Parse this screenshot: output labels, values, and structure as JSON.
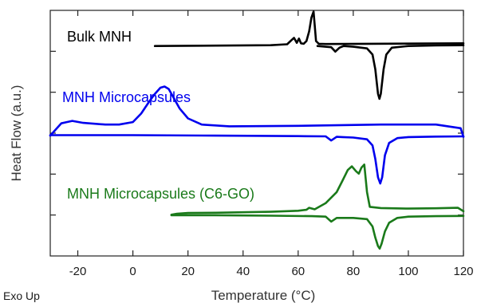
{
  "chart_data": {
    "type": "line",
    "xlabel": "Temperature (°C)",
    "ylabel": "Heat Flow (a.u.)",
    "note": "Exo Up",
    "xlim": [
      -30,
      120
    ],
    "ylim": [
      0,
      10
    ],
    "x_ticks": [
      -20,
      0,
      20,
      40,
      60,
      80,
      100,
      120
    ],
    "y_ticks_count": 5,
    "grid": false,
    "legend": "none",
    "series": [
      {
        "name": "Bulk MNH",
        "color": "#000000",
        "segments": [
          {
            "x": [
              8,
              50,
              56,
              57.5,
              58.5,
              59.5,
              60.3,
              61,
              62,
              63,
              64,
              64.8,
              65.6,
              66.5,
              67.5,
              70,
              85,
              120
            ],
            "y": [
              8.55,
              8.58,
              8.62,
              8.78,
              8.88,
              8.68,
              8.85,
              8.66,
              8.64,
              8.75,
              9.15,
              9.7,
              9.95,
              8.75,
              8.64,
              8.63,
              8.64,
              8.66
            ]
          },
          {
            "x": [
              67,
              72,
              73.5,
              75,
              76.5,
              80,
              85,
              87,
              88,
              89,
              89.5,
              90,
              91,
              92,
              94,
              100,
              110,
              120
            ],
            "y": [
              8.55,
              8.5,
              8.32,
              8.48,
              8.55,
              8.52,
              8.45,
              8.2,
              7.6,
              6.6,
              6.4,
              6.6,
              7.6,
              8.2,
              8.48,
              8.55,
              8.57,
              8.58
            ]
          }
        ]
      },
      {
        "name": "MNH Microcapsules",
        "color": "#0000ee",
        "segments": [
          {
            "x": [
              -30,
              -28,
              -26,
              -24,
              -22,
              -18,
              -10,
              -5,
              0,
              3,
              6,
              8,
              10,
              11.5,
              13,
              15,
              17,
              20,
              25,
              35,
              60,
              90,
              110,
              119,
              120
            ],
            "y": [
              4.9,
              5.15,
              5.4,
              5.45,
              5.5,
              5.42,
              5.35,
              5.35,
              5.45,
              5.8,
              6.3,
              6.6,
              6.85,
              6.9,
              6.8,
              6.4,
              6.0,
              5.6,
              5.35,
              5.28,
              5.3,
              5.35,
              5.35,
              5.2,
              4.85
            ]
          },
          {
            "x": [
              -30,
              0,
              30,
              60,
              70,
              72,
              74,
              76,
              80,
              85,
              87,
              88,
              89,
              89.8,
              90.5,
              91.5,
              93,
              96,
              100,
              110,
              120
            ],
            "y": [
              4.92,
              4.92,
              4.9,
              4.88,
              4.87,
              4.7,
              4.85,
              4.84,
              4.82,
              4.75,
              4.5,
              3.95,
              3.2,
              2.95,
              3.2,
              4.1,
              4.6,
              4.8,
              4.84,
              4.86,
              4.87
            ]
          }
        ]
      },
      {
        "name": "MNH Microcapsules (C6-GO)",
        "color": "#1a7a1a",
        "segments": [
          {
            "x": [
              14,
              16,
              20,
              30,
              50,
              60,
              63,
              64,
              66,
              70,
              74,
              76,
              78,
              79.5,
              81,
              82,
              83,
              84,
              85,
              86,
              90,
              100,
              110,
              118,
              120
            ],
            "y": [
              1.68,
              1.72,
              1.75,
              1.76,
              1.8,
              1.84,
              1.88,
              1.96,
              1.9,
              2.15,
              2.6,
              3.05,
              3.5,
              3.65,
              3.45,
              3.35,
              3.6,
              3.72,
              2.6,
              2.0,
              1.95,
              1.93,
              1.94,
              1.96,
              1.82
            ]
          },
          {
            "x": [
              14,
              30,
              50,
              65,
              70,
              72,
              74,
              80,
              85,
              87,
              88,
              89,
              89.6,
              90.3,
              91.5,
              93,
              96,
              100,
              110,
              120
            ],
            "y": [
              1.66,
              1.66,
              1.64,
              1.62,
              1.6,
              1.4,
              1.55,
              1.55,
              1.5,
              1.2,
              0.75,
              0.4,
              0.3,
              0.5,
              1.0,
              1.35,
              1.55,
              1.6,
              1.62,
              1.63
            ]
          }
        ]
      }
    ]
  }
}
